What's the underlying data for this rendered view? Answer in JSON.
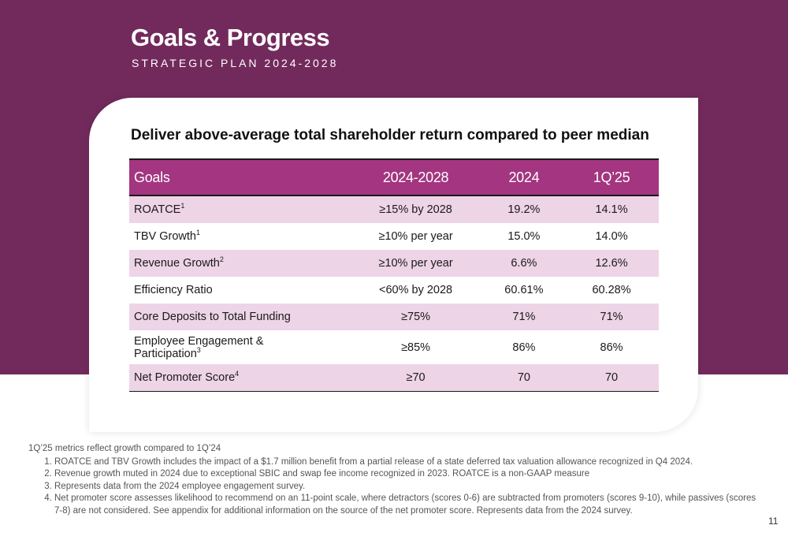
{
  "header": {
    "title": "Goals & Progress",
    "subtitle": "STRATEGIC PLAN 2024-2028"
  },
  "card": {
    "heading": "Deliver above-average total shareholder return compared to peer median"
  },
  "table": {
    "columns": [
      "Goals",
      "2024-2028",
      "2024",
      "1Q’25"
    ],
    "rows": [
      {
        "goal": "ROATCE",
        "sup": "1",
        "target": "≥15% by 2028",
        "y2024": "19.2%",
        "q125": "14.1%"
      },
      {
        "goal": "TBV Growth",
        "sup": "1",
        "target": "≥10% per year",
        "y2024": "15.0%",
        "q125": "14.0%"
      },
      {
        "goal": "Revenue Growth",
        "sup": "2",
        "target": "≥10% per year",
        "y2024": "6.6%",
        "q125": "12.6%"
      },
      {
        "goal": "Efficiency Ratio",
        "sup": "",
        "target": "<60% by 2028",
        "y2024": "60.61%",
        "q125": "60.28%"
      },
      {
        "goal": "Core Deposits to Total Funding",
        "sup": "",
        "target": "≥75%",
        "y2024": "71%",
        "q125": "71%"
      },
      {
        "goal_line1": "Employee Engagement &",
        "goal_line2": "Participation",
        "sup": "3",
        "target": "≥85%",
        "y2024": "86%",
        "q125": "86%"
      },
      {
        "goal": "Net Promoter Score",
        "sup": "4",
        "target": "≥70",
        "y2024": "70",
        "q125": "70"
      }
    ]
  },
  "footnotes": {
    "lead": "1Q’25 metrics reflect growth compared to 1Q’24",
    "items": [
      "ROATCE and TBV Growth includes the impact of a $1.7 million benefit from a partial release of a state deferred tax valuation allowance recognized in Q4 2024.",
      "Revenue growth muted in 2024 due to exceptional SBIC and swap fee income recognized in 2023. ROATCE is a non-GAAP measure",
      "Represents data from the 2024 employee engagement survey.",
      "Net promoter score assesses likelihood to recommend on an 11-point scale, where detractors (scores 0-6) are subtracted from promoters (scores 9-10), while passives (scores 7-8) are not considered. See appendix for additional information on the source of the net promoter score. Represents data from the 2024 survey."
    ]
  },
  "page_number": "11",
  "colors": {
    "band": "#722a5c",
    "table_header": "#a43580",
    "row_stripe": "#edd4e6"
  }
}
